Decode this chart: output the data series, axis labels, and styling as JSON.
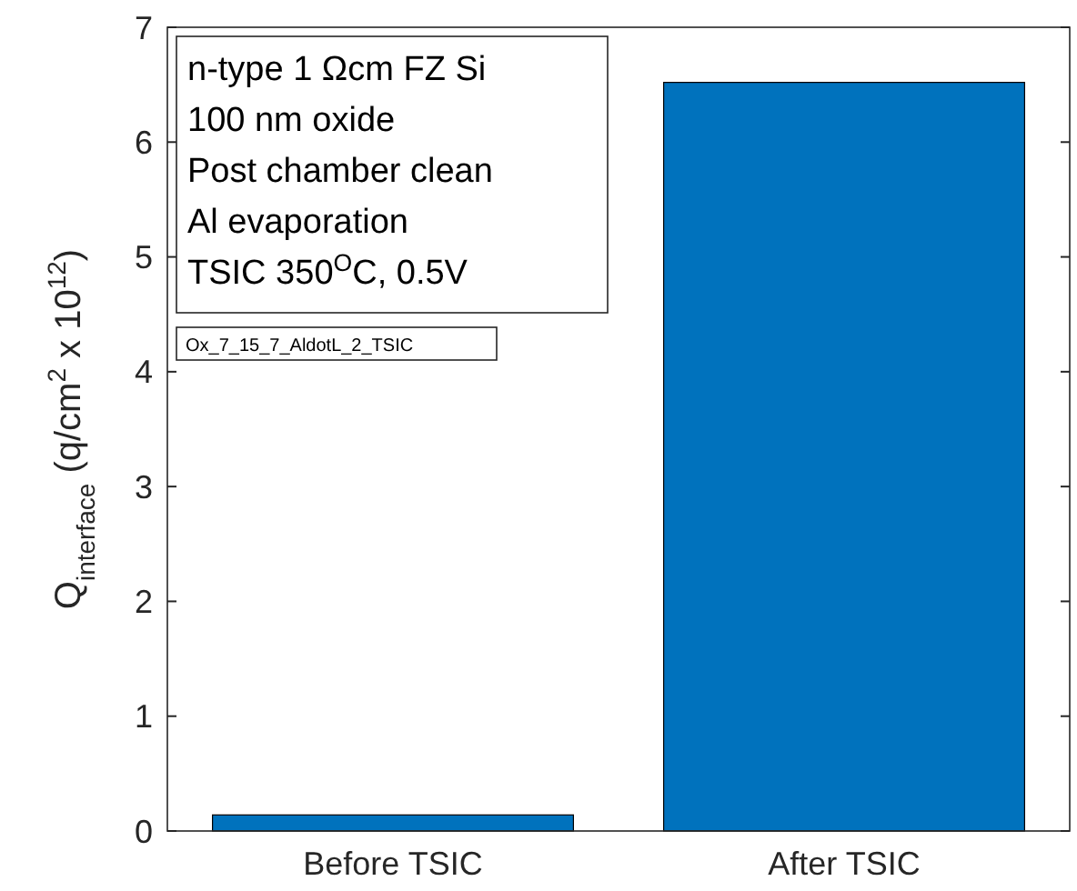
{
  "chart_data": {
    "type": "bar",
    "ylabel": "Q$_{interface}$ (q/cm$^{2}$ x 10$^{12}$)",
    "categories": [
      "Before TSIC",
      "After TSIC"
    ],
    "values": [
      0.14,
      6.52
    ],
    "color": "#0072bd",
    "ylim": [
      0,
      7
    ],
    "yticks": [
      0,
      1,
      2,
      3,
      4,
      5,
      6,
      7
    ],
    "grid": false,
    "annotations": [
      "n-type 1 Ωcm FZ Si",
      "100 nm oxide",
      "Post chamber clean",
      "Al evaporation",
      "TSIC 350$^{O}$C, 0.5V",
      "Ox_7_15_7_AldotL_2_TSIC"
    ]
  }
}
